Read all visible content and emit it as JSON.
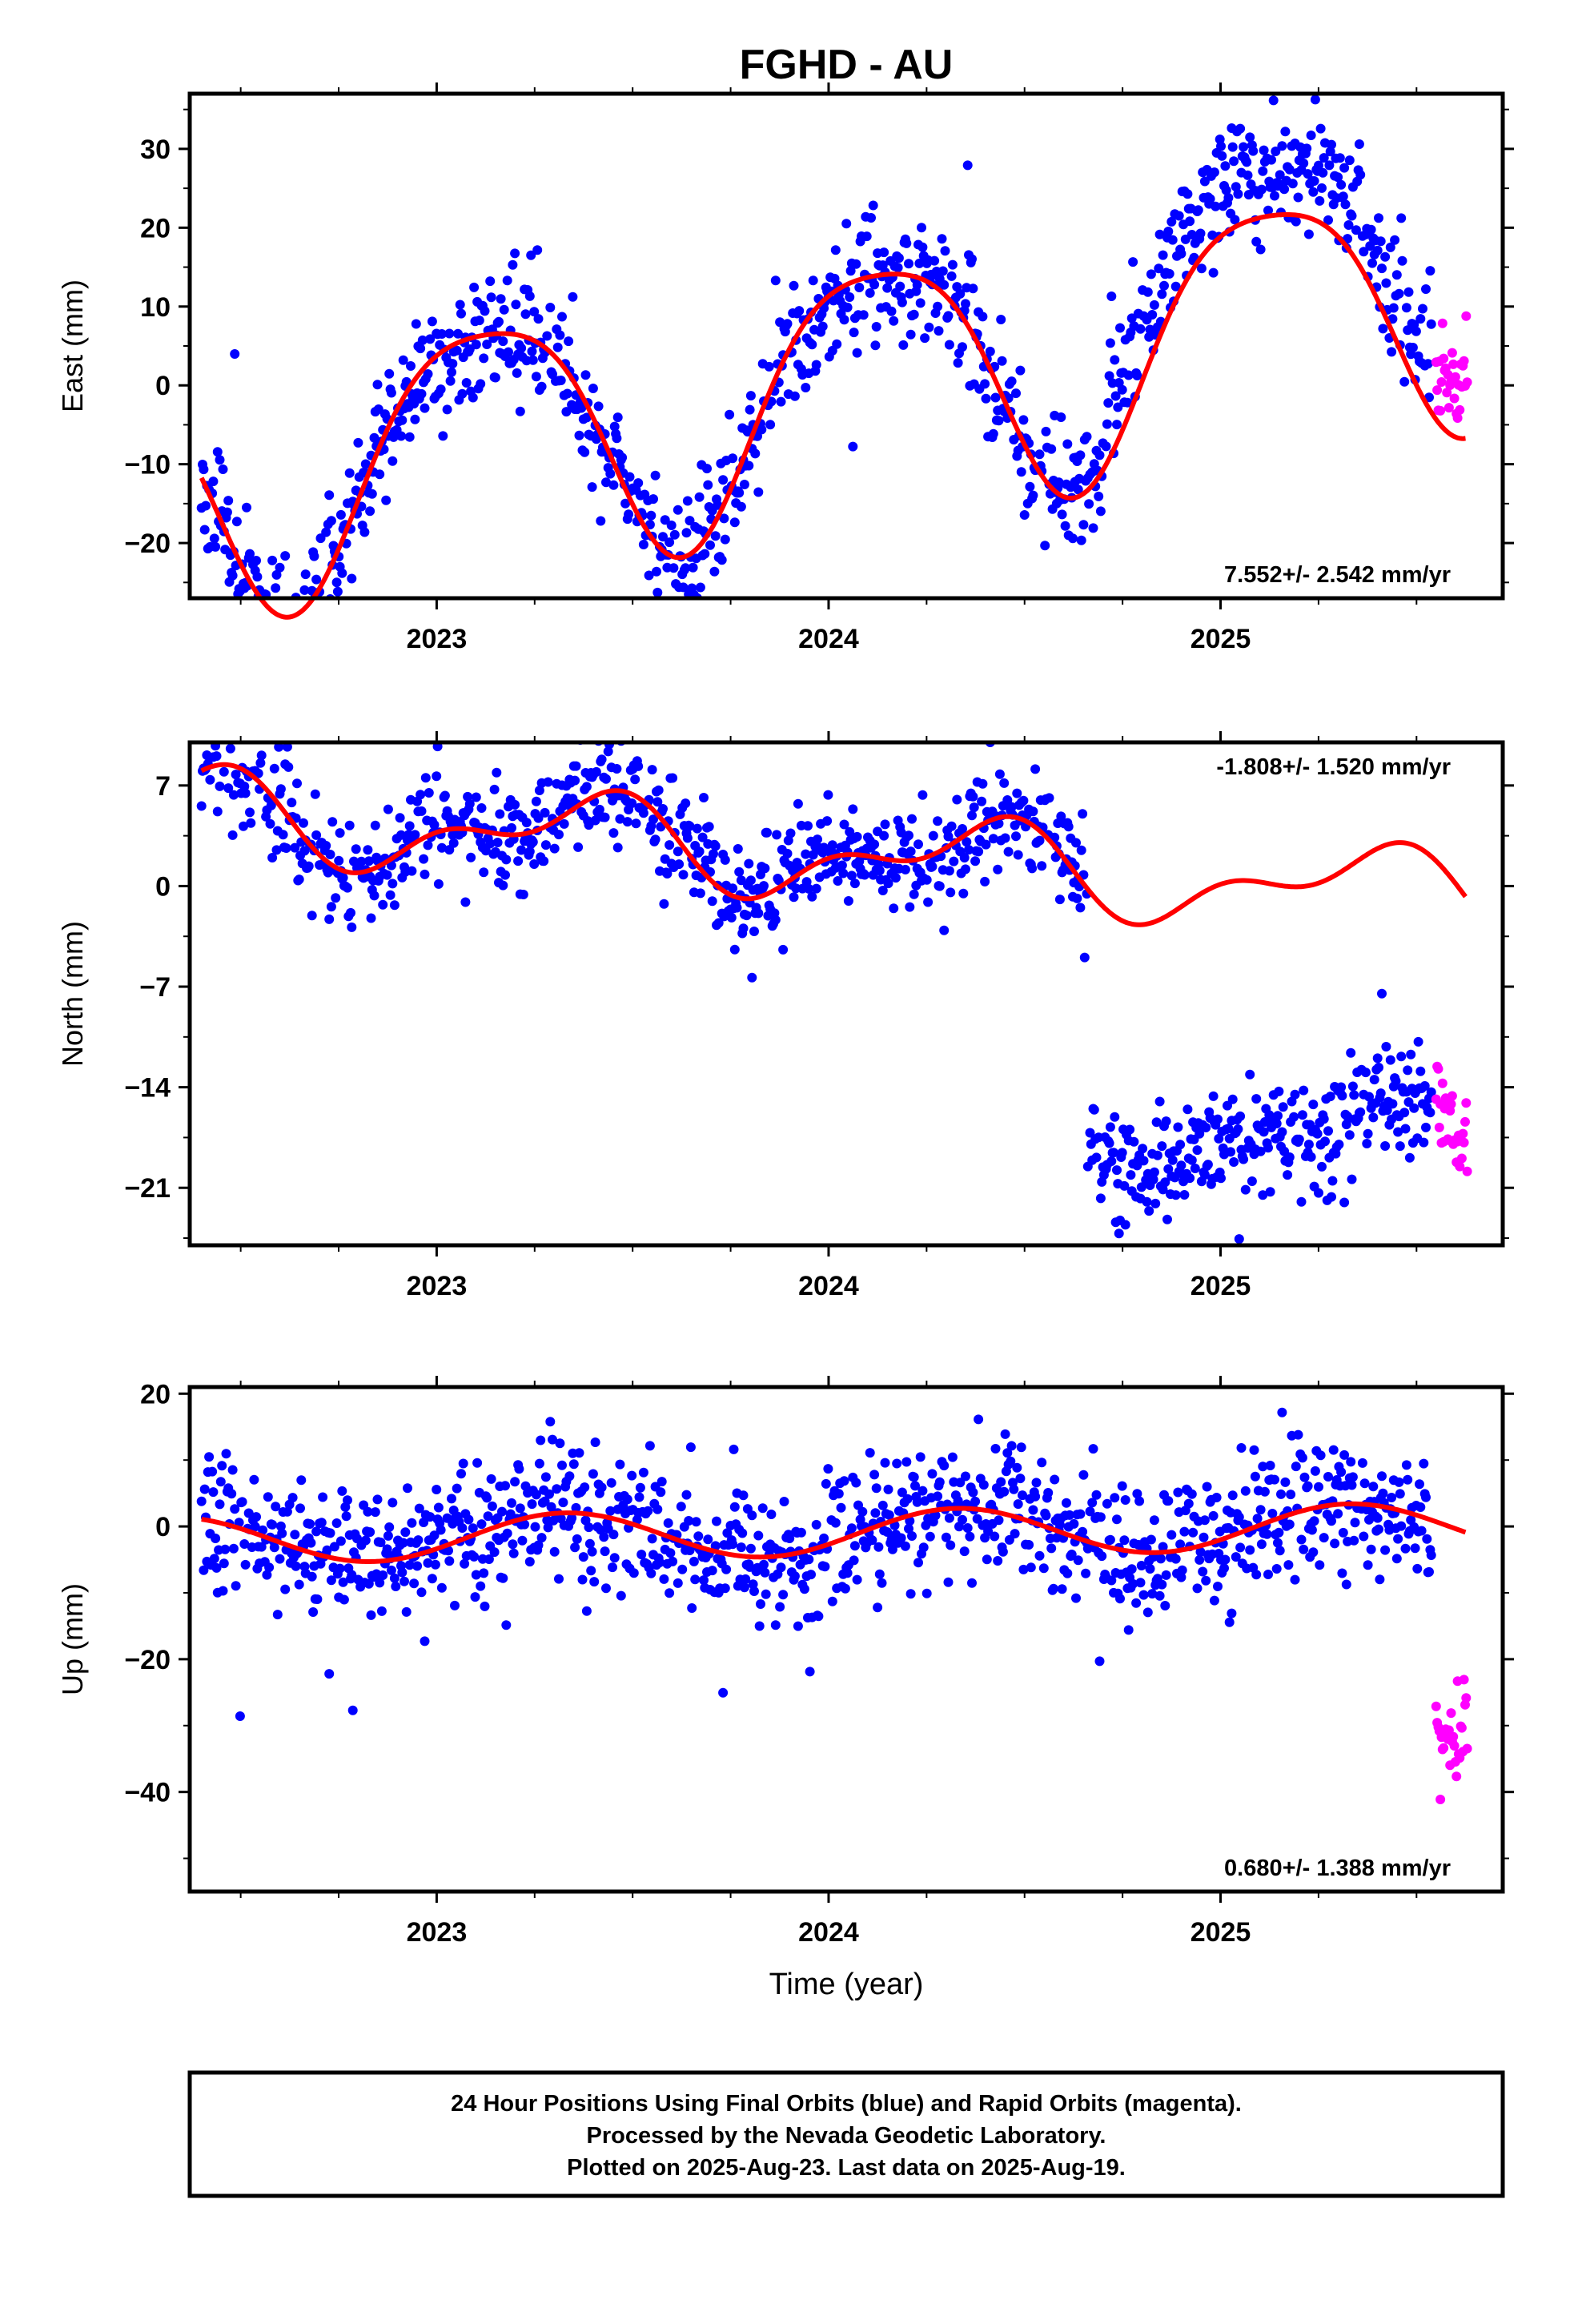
{
  "title": "FGHD - AU",
  "chart_data": [
    {
      "type": "scatter",
      "ylabel": "East (mm)",
      "xlabel": "",
      "xlim": [
        2022.37,
        2025.72
      ],
      "ylim": [
        -27,
        37
      ],
      "yticks": [
        -20,
        -10,
        0,
        10,
        20,
        30
      ],
      "xticks": [
        2023,
        2024,
        2025
      ],
      "rate": "7.552+/- 2.542 mm/yr",
      "rate_position": "bottom-right",
      "model": {
        "mean": 0,
        "slope": 7.552,
        "amp": 16,
        "phase": 0.875,
        "amp2": 3,
        "phase2": 0.75
      },
      "noise": {
        "sd": 4.0,
        "seed": 11
      },
      "offsets": [
        {
          "x": 2024.7,
          "dy": 6
        }
      ],
      "series": [
        {
          "name": "Final Orbits",
          "color": "#0000ff",
          "x_range": [
            2022.4,
            2025.54
          ]
        },
        {
          "name": "Rapid Orbits",
          "color": "#ff00ff",
          "x_range": [
            2025.55,
            2025.63
          ]
        }
      ],
      "fit_color": "#ff0000",
      "grid": false
    },
    {
      "type": "scatter",
      "ylabel": "North (mm)",
      "xlabel": "",
      "xlim": [
        2022.37,
        2025.72
      ],
      "ylim": [
        -25,
        10
      ],
      "yticks": [
        -21,
        -14,
        -7,
        0,
        7
      ],
      "xticks": [
        2023,
        2024,
        2025
      ],
      "rate": "-1.808+/- 1.520 mm/yr",
      "rate_position": "top-right",
      "model": {
        "mean": 2.2,
        "slope": -1.808,
        "amp": 2.5,
        "phase": 0.125,
        "amp2": 1.5,
        "phase2": 0.875
      },
      "noise": {
        "sd": 1.9,
        "seed": 23
      },
      "offsets": [
        {
          "x": 2024.66,
          "dy": -17.5
        }
      ],
      "series": [
        {
          "name": "Final Orbits",
          "color": "#0000ff",
          "x_range": [
            2022.4,
            2025.54
          ]
        },
        {
          "name": "Rapid Orbits",
          "color": "#ff00ff",
          "x_range": [
            2025.55,
            2025.63
          ]
        }
      ],
      "fit_color": "#ff0000",
      "grid": false
    },
    {
      "type": "scatter",
      "ylabel": "Up (mm)",
      "xlabel": "Time (year)",
      "xlim": [
        2022.37,
        2025.72
      ],
      "ylim": [
        -55,
        21
      ],
      "yticks": [
        -40,
        -20,
        0,
        20
      ],
      "xticks": [
        2023,
        2024,
        2025
      ],
      "rate": "0.680+/- 1.388 mm/yr",
      "rate_position": "bottom-right",
      "model": {
        "mean": -1.0,
        "slope": 0.68,
        "amp": 3.5,
        "phase": 0.08,
        "amp2": 0,
        "phase2": 0
      },
      "noise": {
        "sd": 5.0,
        "seed": 37
      },
      "offsets": [],
      "series": [
        {
          "name": "Final Orbits",
          "color": "#0000ff",
          "x_range": [
            2022.4,
            2025.54
          ]
        },
        {
          "name": "Rapid Orbits",
          "color": "#ff00ff",
          "x_range": [
            2025.55,
            2025.63
          ],
          "dy": -30
        }
      ],
      "fit_color": "#ff0000",
      "grid": false
    }
  ],
  "caption": {
    "line1": "24 Hour Positions Using Final Orbits (blue) and Rapid Orbits (magenta).",
    "line2": "Processed by the Nevada Geodetic Laboratory.",
    "line3": "Plotted on 2025-Aug-23. Last data on 2025-Aug-19."
  }
}
